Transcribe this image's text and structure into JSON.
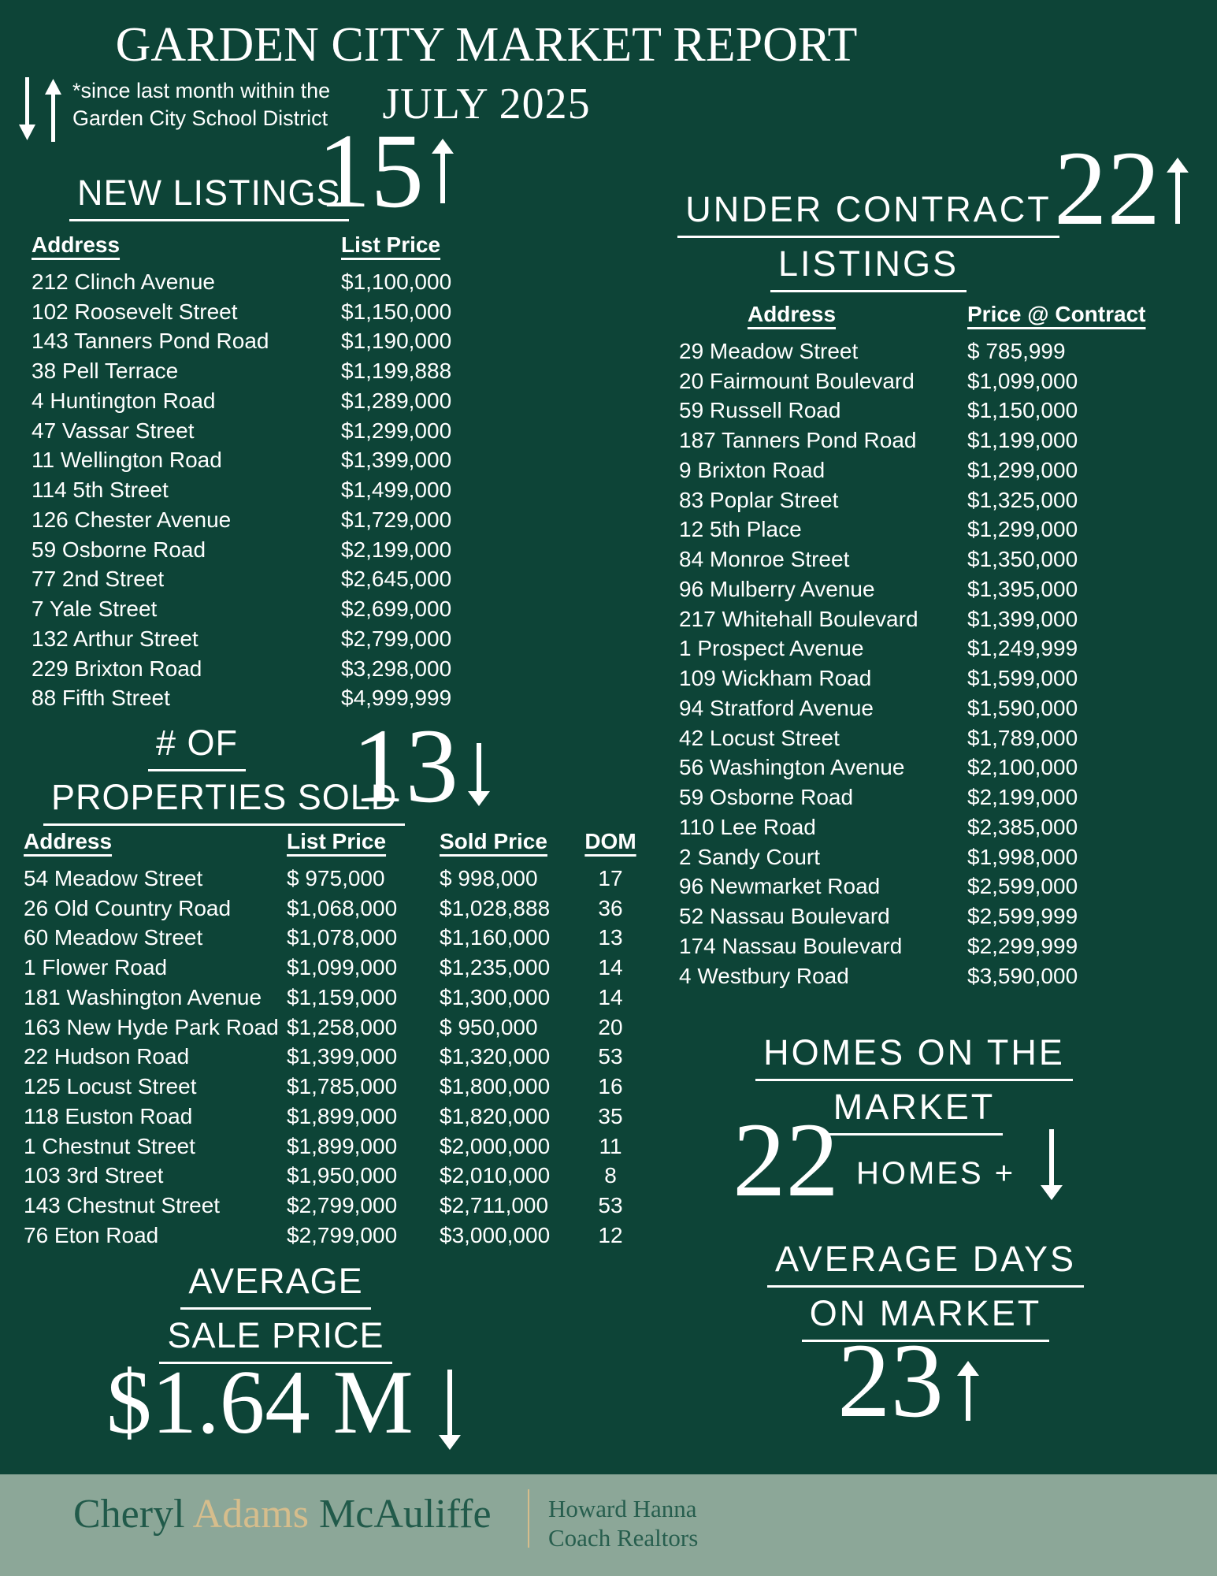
{
  "colors": {
    "background": "#0d4437",
    "footer_band": "#8ca798",
    "gold": "#d6bd8c",
    "footer_text_green": "#215a4a",
    "text": "#ffffff"
  },
  "header": {
    "title_line1": "GARDEN CITY MARKET REPORT",
    "title_line2": "JULY 2025",
    "note_line1": "*since last month within the",
    "note_line2": "Garden City School District"
  },
  "new_listings": {
    "heading": "NEW LISTINGS",
    "stat_value": "15",
    "stat_direction": "up",
    "columns": [
      "Address",
      "List Price"
    ],
    "rows": [
      {
        "address": "212 Clinch Avenue",
        "price": "$1,100,000"
      },
      {
        "address": "102 Roosevelt Street",
        "price": "$1,150,000"
      },
      {
        "address": "143 Tanners Pond Road",
        "price": "$1,190,000"
      },
      {
        "address": "38 Pell Terrace",
        "price": "$1,199,888"
      },
      {
        "address": "4 Huntington Road",
        "price": "$1,289,000"
      },
      {
        "address": "47 Vassar Street",
        "price": "$1,299,000"
      },
      {
        "address": "11 Wellington Road",
        "price": "$1,399,000"
      },
      {
        "address": "114 5th Street",
        "price": "$1,499,000"
      },
      {
        "address": "126 Chester Avenue",
        "price": "$1,729,000"
      },
      {
        "address": "59 Osborne Road",
        "price": "$2,199,000"
      },
      {
        "address": "77 2nd Street",
        "price": "$2,645,000"
      },
      {
        "address": "7 Yale Street",
        "price": "$2,699,000"
      },
      {
        "address": "132 Arthur Street",
        "price": "$2,799,000"
      },
      {
        "address": "229 Brixton Road",
        "price": "$3,298,000"
      },
      {
        "address": "88 Fifth Street",
        "price": "$4,999,999"
      }
    ]
  },
  "under_contract": {
    "heading_line1": "UNDER CONTRACT",
    "heading_line2": "LISTINGS",
    "stat_value": "22",
    "stat_direction": "up",
    "columns": [
      "Address",
      "Price @ Contract"
    ],
    "rows": [
      {
        "address": "29 Meadow Street",
        "price": "$ 785,999"
      },
      {
        "address": "20 Fairmount Boulevard",
        "price": "$1,099,000"
      },
      {
        "address": "59 Russell Road",
        "price": "$1,150,000"
      },
      {
        "address": "187 Tanners Pond Road",
        "price": "$1,199,000"
      },
      {
        "address": "9 Brixton Road",
        "price": "$1,299,000"
      },
      {
        "address": "83 Poplar Street",
        "price": "$1,325,000"
      },
      {
        "address": "12 5th Place",
        "price": "$1,299,000"
      },
      {
        "address": "84 Monroe Street",
        "price": "$1,350,000"
      },
      {
        "address": "96 Mulberry Avenue",
        "price": "$1,395,000"
      },
      {
        "address": "217 Whitehall Boulevard",
        "price": "$1,399,000"
      },
      {
        "address": "1 Prospect Avenue",
        "price": "$1,249,999"
      },
      {
        "address": "109 Wickham Road",
        "price": "$1,599,000"
      },
      {
        "address": "94 Stratford Avenue",
        "price": "$1,590,000"
      },
      {
        "address": "42 Locust Street",
        "price": "$1,789,000"
      },
      {
        "address": "56 Washington Avenue",
        "price": "$2,100,000"
      },
      {
        "address": "59 Osborne Road",
        "price": "$2,199,000"
      },
      {
        "address": "110 Lee Road",
        "price": "$2,385,000"
      },
      {
        "address": "2 Sandy Court",
        "price": "$1,998,000"
      },
      {
        "address": "96 Newmarket Road",
        "price": "$2,599,000"
      },
      {
        "address": "52 Nassau Boulevard",
        "price": "$2,599,999"
      },
      {
        "address": "174 Nassau Boulevard",
        "price": "$2,299,999"
      },
      {
        "address": "4 Westbury Road",
        "price": "$3,590,000"
      }
    ]
  },
  "properties_sold": {
    "heading_line1": "# OF",
    "heading_line2": "PROPERTIES SOLD",
    "stat_value": "13",
    "stat_direction": "down",
    "columns": [
      "Address",
      "List Price",
      "Sold Price",
      "DOM"
    ],
    "rows": [
      {
        "address": "54 Meadow Street",
        "list_price": "$ 975,000",
        "sold_price": "$ 998,000",
        "dom": "17"
      },
      {
        "address": "26 Old Country Road",
        "list_price": "$1,068,000",
        "sold_price": "$1,028,888",
        "dom": "36"
      },
      {
        "address": "60 Meadow Street",
        "list_price": "$1,078,000",
        "sold_price": "$1,160,000",
        "dom": "13"
      },
      {
        "address": "1 Flower Road",
        "list_price": "$1,099,000",
        "sold_price": "$1,235,000",
        "dom": "14"
      },
      {
        "address": "181 Washington Avenue",
        "list_price": "$1,159,000",
        "sold_price": "$1,300,000",
        "dom": "14"
      },
      {
        "address": "163 New Hyde Park Road",
        "list_price": "$1,258,000",
        "sold_price": "$ 950,000",
        "dom": "20"
      },
      {
        "address": "22 Hudson Road",
        "list_price": "$1,399,000",
        "sold_price": "$1,320,000",
        "dom": "53"
      },
      {
        "address": "125 Locust Street",
        "list_price": "$1,785,000",
        "sold_price": "$1,800,000",
        "dom": "16"
      },
      {
        "address": "118 Euston Road",
        "list_price": "$1,899,000",
        "sold_price": "$1,820,000",
        "dom": "35"
      },
      {
        "address": "1 Chestnut Street",
        "list_price": "$1,899,000",
        "sold_price": "$2,000,000",
        "dom": "11"
      },
      {
        "address": "103 3rd Street",
        "list_price": "$1,950,000",
        "sold_price": "$2,010,000",
        "dom": "8"
      },
      {
        "address": "143 Chestnut Street",
        "list_price": "$2,799,000",
        "sold_price": "$2,711,000",
        "dom": "53"
      },
      {
        "address": "76 Eton Road",
        "list_price": "$2,799,000",
        "sold_price": "$3,000,000",
        "dom": "12"
      }
    ]
  },
  "homes_on_market": {
    "heading_line1": "HOMES ON THE",
    "heading_line2": "MARKET",
    "stat_value": "22",
    "stat_suffix": "HOMES +",
    "stat_direction": "down"
  },
  "average_days_on_market": {
    "heading_line1": "AVERAGE DAYS",
    "heading_line2": "ON MARKET",
    "stat_value": "23",
    "stat_direction": "up"
  },
  "average_sale_price": {
    "heading_line1": "AVERAGE",
    "heading_line2": "SALE PRICE",
    "stat_value": "$1.64 M",
    "stat_direction": "down"
  },
  "footer": {
    "agent_first": "Cheryl",
    "agent_middle": "Adams",
    "agent_last": "McAuliffe",
    "brokerage_line1": "Howard Hanna",
    "brokerage_line2": "Coach Realtors"
  }
}
